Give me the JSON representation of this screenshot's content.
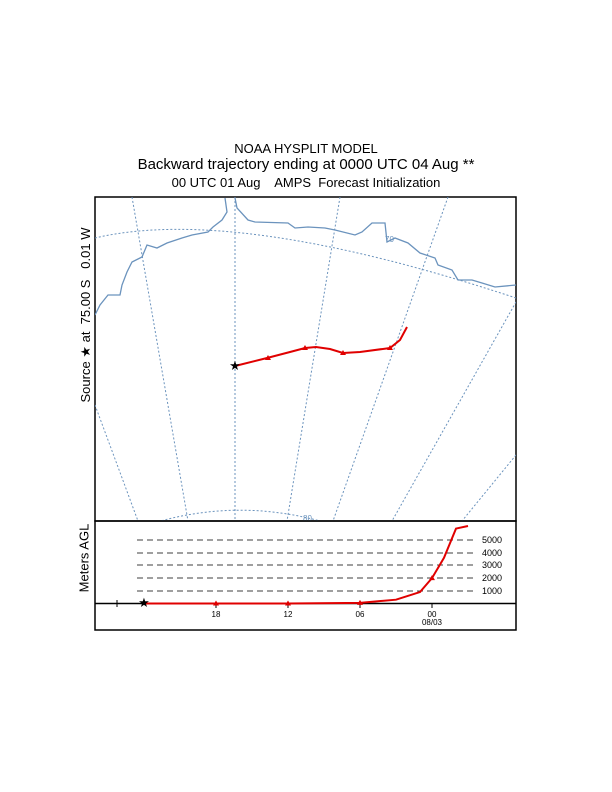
{
  "title": {
    "line1": "NOAA HYSPLIT MODEL",
    "line2": "Backward trajectory ending at 0000 UTC 04 Aug **",
    "line3": "00 UTC 01 Aug    AMPS  Forecast Initialization"
  },
  "map": {
    "source_label": "Source ★ at  75.00 S   0.01 W",
    "lat_labels": [
      "70",
      "80"
    ],
    "colors": {
      "grid": "#6b93bd",
      "trajectory": "#e00000",
      "source": "#000000"
    },
    "trajectory_marker": "triangle",
    "source_icon": "star-icon"
  },
  "height_panel": {
    "ylabel": "Meters AGL",
    "levels": [
      "5000",
      "4000",
      "3000",
      "2000",
      "1000"
    ],
    "time_ticks": [
      "18",
      "12",
      "06",
      "00"
    ],
    "date_label": "08/03",
    "height_profile_m": [
      {
        "t_hours_back": 0,
        "h": 0
      },
      {
        "t_hours_back": 6,
        "h": 0
      },
      {
        "t_hours_back": 12,
        "h": 0
      },
      {
        "t_hours_back": 18,
        "h": 50
      },
      {
        "t_hours_back": 21,
        "h": 300
      },
      {
        "t_hours_back": 23,
        "h": 900
      },
      {
        "t_hours_back": 24,
        "h": 2000
      },
      {
        "t_hours_back": 25,
        "h": 3600
      },
      {
        "t_hours_back": 26,
        "h": 5900
      },
      {
        "t_hours_back": 27,
        "h": 6100
      }
    ]
  }
}
